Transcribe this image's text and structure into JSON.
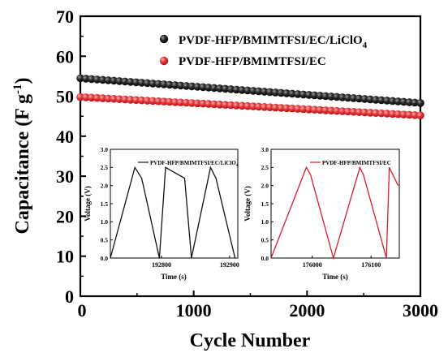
{
  "chart_data": [
    {
      "type": "scatter",
      "xlabel": "Cycle Number",
      "ylabel_main": "Capacitance (F g",
      "ylabel_sup": "-1",
      "ylabel_close": ")",
      "xlim": [
        0,
        3000
      ],
      "ylim": [
        0,
        70
      ],
      "xticks": [
        "0",
        "1000",
        "2000",
        "3000"
      ],
      "yticks": [
        "0",
        "10",
        "20",
        "30",
        "40",
        "50",
        "60",
        "70"
      ],
      "legend_position": "top-right",
      "series": [
        {
          "name_main": "PVDF-HFP/BMIMTFSI/EC/LiClO",
          "name_sub": "4",
          "color": "#1a1a1a",
          "start_value": 54.5,
          "end_value": 48.3,
          "n_points": 62
        },
        {
          "name_main": "PVDF-HFP/BMIMTFSI/EC",
          "name_sub": "",
          "color": "#e0262b",
          "start_value": 49.8,
          "end_value": 45.2,
          "n_points": 62
        }
      ]
    },
    {
      "type": "line",
      "xlabel": "Time (s)",
      "ylabel": "Voltage (V)",
      "legend": "PVDF-HFP/BMIMTFSI/EC/LiClO",
      "legend_sub": "4",
      "color": "#111111",
      "xlim": [
        192725,
        192912
      ],
      "ylim": [
        0,
        3.0
      ],
      "xticks": [
        192800,
        192900
      ],
      "xtick_labels": [
        "192800",
        "192900"
      ],
      "yticks": [
        "0.0",
        "0.5",
        "1.0",
        "1.5",
        "2.0",
        "2.5",
        "3.0"
      ],
      "points_x": [
        192725,
        192761,
        192771,
        192797,
        192806,
        192834,
        192844,
        192872,
        192880,
        192908
      ],
      "points_y": [
        0.0,
        2.5,
        2.2,
        0.0,
        2.5,
        2.2,
        0.0,
        2.5,
        2.2,
        0.0
      ]
    },
    {
      "type": "line",
      "xlabel": "Time (s)",
      "ylabel": "Voltage (V)",
      "legend": "PVDF-HFP/BMIMTFSI/EC",
      "legend_sub": "",
      "color": "#d81e23",
      "xlim": [
        175930,
        176148
      ],
      "ylim": [
        0,
        3.0
      ],
      "xticks": [
        176000,
        176100
      ],
      "xtick_labels": [
        "176000",
        "176100"
      ],
      "yticks": [
        "0.0",
        "0.5",
        "1.0",
        "1.5",
        "2.0",
        "2.5",
        "3.0"
      ],
      "points_x": [
        175930,
        175990,
        175997,
        176036,
        176081,
        176087,
        176126,
        176131,
        176146
      ],
      "points_y": [
        0.0,
        2.5,
        2.3,
        0.0,
        2.5,
        2.3,
        0.0,
        2.5,
        2.0
      ]
    }
  ]
}
